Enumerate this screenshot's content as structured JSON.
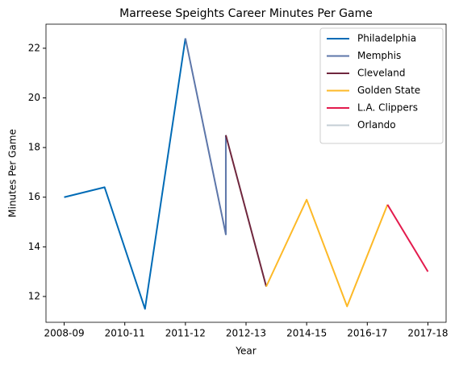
{
  "chart_data": {
    "type": "line",
    "title": "Marreese Speights Career Minutes Per Game",
    "xlabel": "Year",
    "ylabel": "Minutes Per Game",
    "series": [
      {
        "name": "Philadelphia",
        "color": "#006bb6",
        "x": [
          0,
          1,
          2,
          3
        ],
        "values": [
          16.0,
          16.4,
          11.5,
          22.4
        ]
      },
      {
        "name": "Memphis",
        "color": "#5d76a9",
        "x": [
          3,
          4,
          4
        ],
        "values": [
          22.4,
          14.5,
          18.5
        ]
      },
      {
        "name": "Cleveland",
        "color": "#6f263d",
        "x": [
          4,
          5
        ],
        "values": [
          18.5,
          12.4
        ]
      },
      {
        "name": "Golden State",
        "color": "#fdb927",
        "x": [
          5,
          6,
          7,
          8
        ],
        "values": [
          12.4,
          15.9,
          11.6,
          15.7
        ]
      },
      {
        "name": "L.A. Clippers",
        "color": "#e31b4d",
        "x": [
          8,
          9
        ],
        "values": [
          15.7,
          13.0
        ]
      },
      {
        "name": "Orlando",
        "color": "#c4ced4",
        "x": [
          9
        ],
        "values": [
          13.0
        ]
      }
    ],
    "xlim": [
      -0.45,
      9.45
    ],
    "xticks": [
      {
        "value": 0,
        "label": "2008-09"
      },
      {
        "value": 1.5,
        "label": "2010-11"
      },
      {
        "value": 3,
        "label": "2011-12"
      },
      {
        "value": 4.5,
        "label": "2012-13"
      },
      {
        "value": 6,
        "label": "2014-15"
      },
      {
        "value": 7.5,
        "label": "2016-17"
      },
      {
        "value": 9,
        "label": "2017-18"
      }
    ],
    "ylim": [
      10.96,
      22.97
    ],
    "yticks": [
      12,
      14,
      16,
      18,
      20,
      22
    ],
    "grid": false,
    "legend": "upper right"
  }
}
